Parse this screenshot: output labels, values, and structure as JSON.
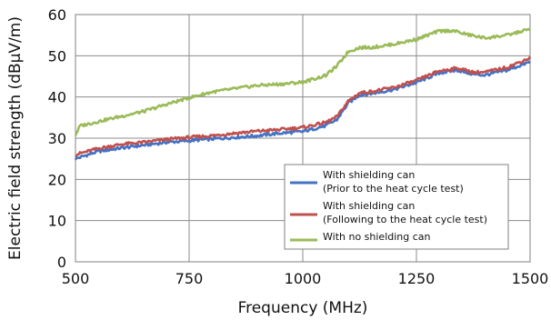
{
  "chart_data": {
    "type": "line",
    "title": "",
    "xlabel": "Frequency  (MHz)",
    "ylabel": "Electric field strength (dBμV/m)",
    "xlim": [
      500,
      1500
    ],
    "ylim": [
      0,
      60
    ],
    "x_ticks": [
      500,
      750,
      1000,
      1250,
      1500
    ],
    "y_ticks": [
      0,
      10,
      20,
      30,
      40,
      50,
      60
    ],
    "grid": true,
    "legend_position": "lower-right",
    "series": [
      {
        "name": "With shielding can",
        "name_line2": "(Prior to the heat cycle test)",
        "color": "#4472c4",
        "x": [
          500,
          550,
          600,
          650,
          700,
          750,
          800,
          850,
          900,
          950,
          1000,
          1050,
          1075,
          1100,
          1125,
          1150,
          1200,
          1250,
          1300,
          1340,
          1375,
          1400,
          1450,
          1500
        ],
        "y": [
          25.0,
          26.8,
          27.6,
          28.3,
          29.0,
          29.4,
          29.8,
          30.2,
          30.6,
          31.2,
          31.6,
          33.0,
          34.5,
          38.5,
          40.5,
          40.8,
          41.8,
          43.5,
          45.8,
          46.5,
          45.5,
          45.3,
          46.5,
          48.5
        ]
      },
      {
        "name": "With shielding can",
        "name_line2": "(Following to the heat cycle test)",
        "color": "#c0504d",
        "x": [
          500,
          550,
          600,
          650,
          700,
          750,
          800,
          850,
          900,
          950,
          1000,
          1050,
          1075,
          1100,
          1125,
          1150,
          1200,
          1250,
          1300,
          1340,
          1375,
          1400,
          1450,
          1500
        ],
        "y": [
          26.0,
          27.5,
          28.5,
          29.0,
          29.7,
          30.2,
          30.6,
          31.2,
          31.7,
          32.1,
          32.6,
          33.8,
          35.2,
          39.0,
          41.0,
          41.3,
          42.3,
          44.0,
          46.3,
          47.0,
          46.0,
          46.0,
          47.2,
          49.5
        ]
      },
      {
        "name": "With no shielding can",
        "name_line2": "",
        "color": "#9bbb59",
        "x": [
          500,
          510,
          530,
          560,
          600,
          650,
          700,
          750,
          800,
          850,
          900,
          950,
          1000,
          1050,
          1075,
          1100,
          1125,
          1150,
          1200,
          1250,
          1300,
          1330,
          1360,
          1400,
          1450,
          1500
        ],
        "y": [
          30.8,
          33.0,
          33.5,
          34.3,
          35.3,
          36.5,
          38.2,
          39.8,
          41.2,
          42.0,
          42.8,
          43.1,
          43.6,
          45.2,
          47.5,
          51.0,
          52.0,
          52.0,
          52.8,
          54.0,
          56.0,
          56.1,
          55.2,
          54.3,
          55.0,
          56.5
        ]
      }
    ]
  }
}
